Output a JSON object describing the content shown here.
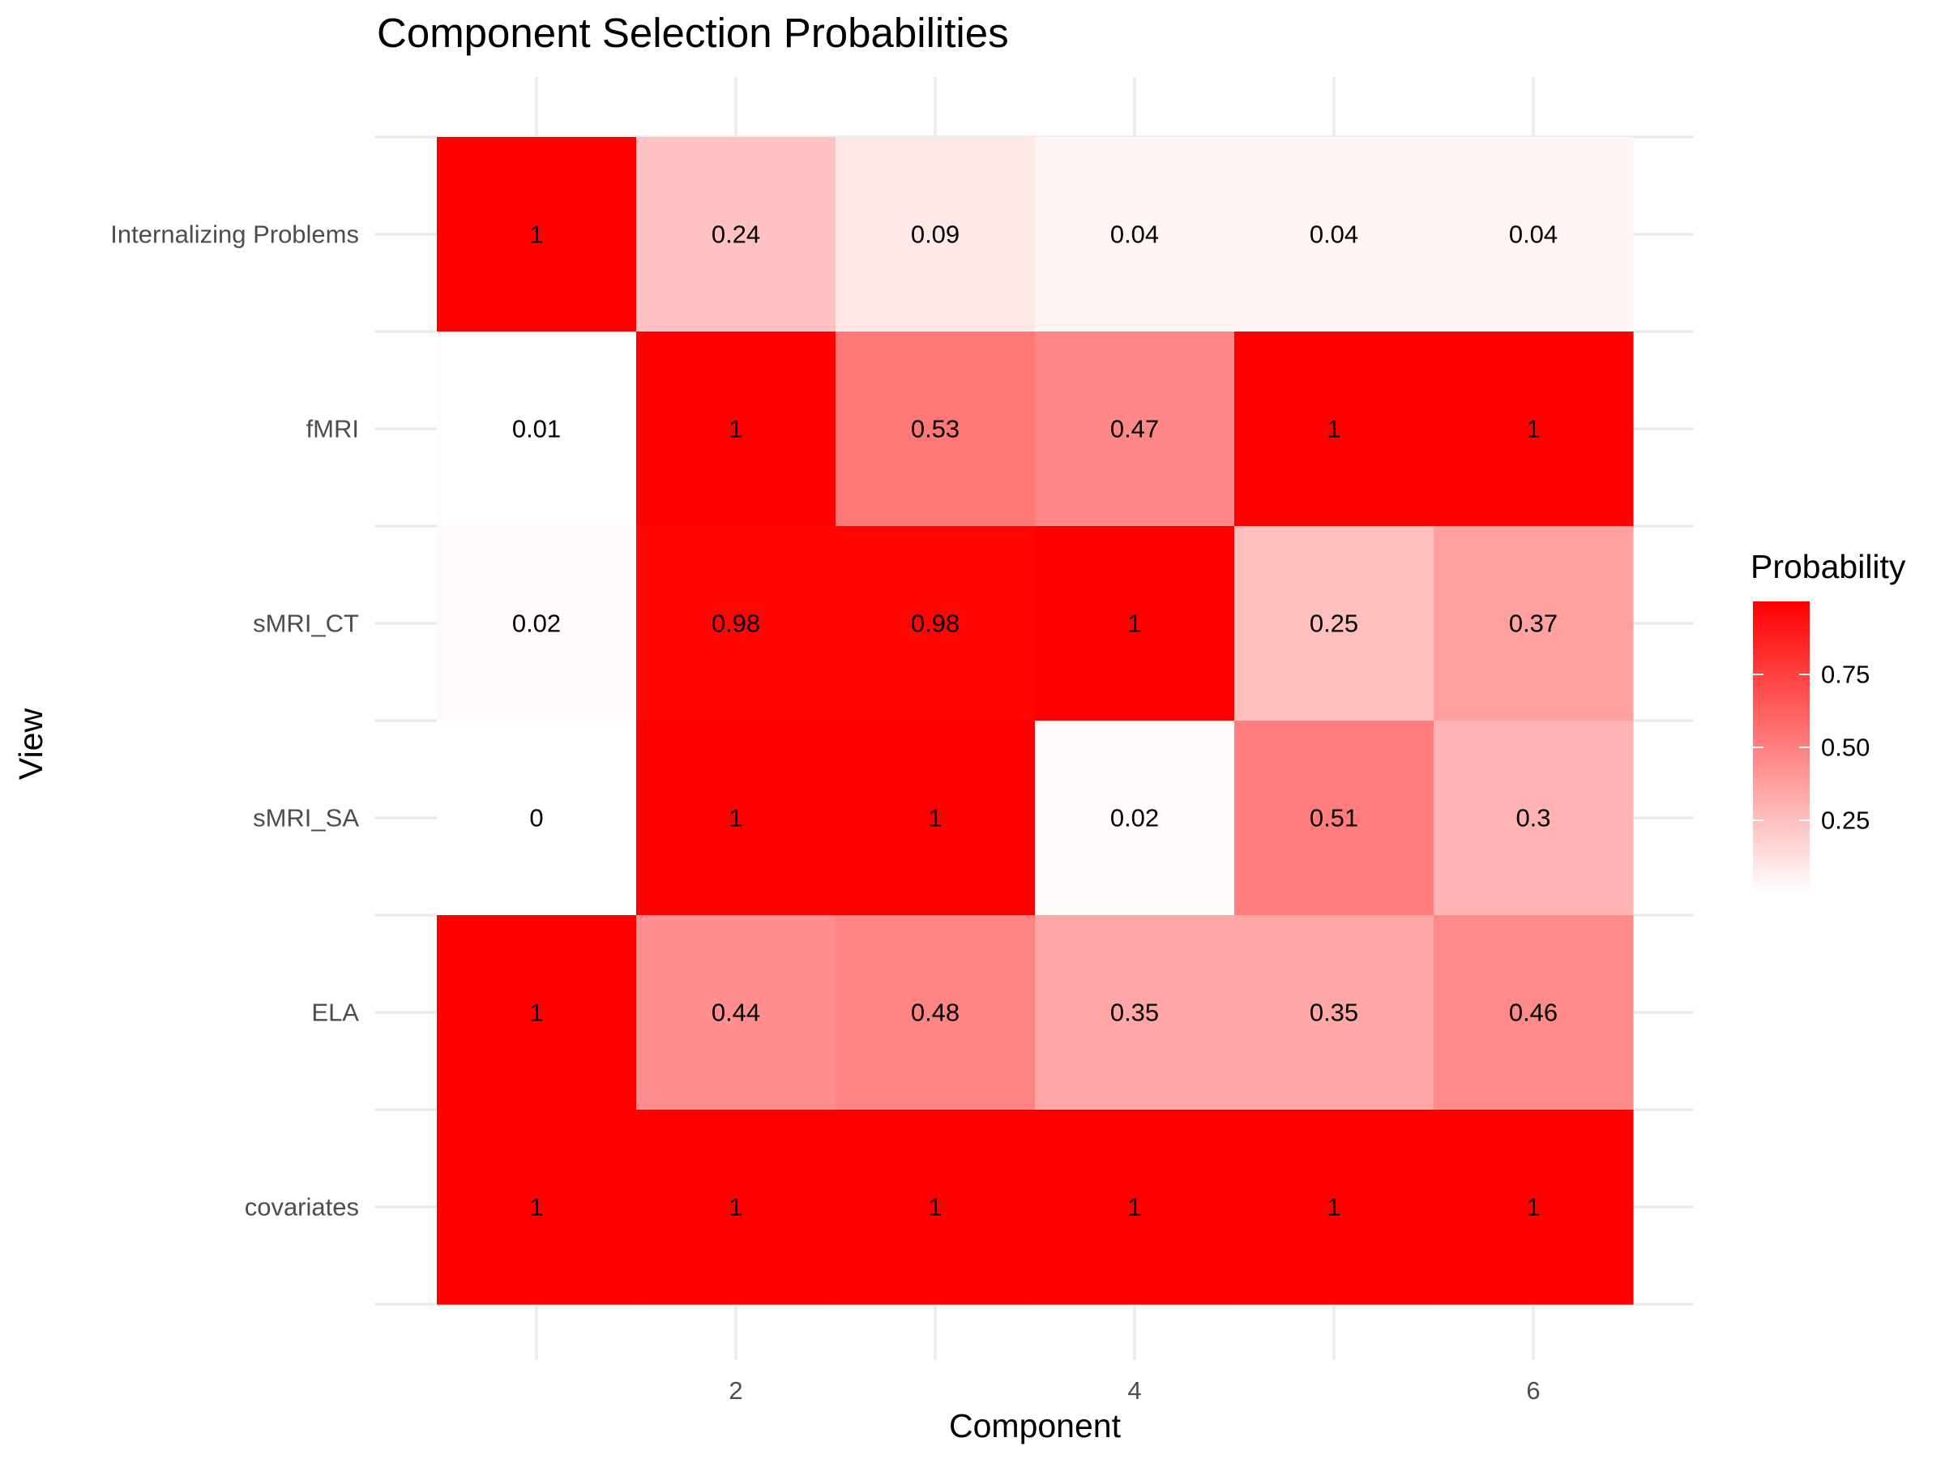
{
  "chart_data": {
    "type": "heatmap",
    "title": "Component Selection Probabilities",
    "xlabel": "Component",
    "ylabel": "View",
    "x": [
      1,
      2,
      3,
      4,
      5,
      6
    ],
    "x_ticks": [
      "2",
      "4",
      "6"
    ],
    "x_tick_values": [
      2,
      4,
      6
    ],
    "rows": [
      "Internalizing Problems",
      "fMRI",
      "sMRI_CT",
      "sMRI_SA",
      "ELA",
      "covariates"
    ],
    "values": [
      [
        1,
        0.24,
        0.09,
        0.04,
        0.04,
        0.04
      ],
      [
        0.01,
        1,
        0.53,
        0.47,
        1,
        1
      ],
      [
        0.02,
        0.98,
        0.98,
        1,
        0.25,
        0.37
      ],
      [
        0,
        1,
        1,
        0.02,
        0.51,
        0.3
      ],
      [
        1,
        0.44,
        0.48,
        0.35,
        0.35,
        0.46
      ],
      [
        1,
        1,
        1,
        1,
        1,
        1
      ]
    ],
    "labels": [
      [
        "1",
        "0.24",
        "0.09",
        "0.04",
        "0.04",
        "0.04"
      ],
      [
        "0.01",
        "1",
        "0.53",
        "0.47",
        "1",
        "1"
      ],
      [
        "0.02",
        "0.98",
        "0.98",
        "1",
        "0.25",
        "0.37"
      ],
      [
        "0",
        "1",
        "1",
        "0.02",
        "0.51",
        "0.3"
      ],
      [
        "1",
        "0.44",
        "0.48",
        "0.35",
        "0.35",
        "0.46"
      ],
      [
        "1",
        "1",
        "1",
        "1",
        "1",
        "1"
      ]
    ],
    "colorscale": {
      "low": "#ffffff",
      "high": "#ff0000",
      "min": 0,
      "max": 1
    },
    "legend": {
      "title": "Probability",
      "ticks": [
        "0.75",
        "0.50",
        "0.25"
      ],
      "tick_values": [
        0.75,
        0.5,
        0.25
      ],
      "placement": "right"
    },
    "grid": true
  }
}
